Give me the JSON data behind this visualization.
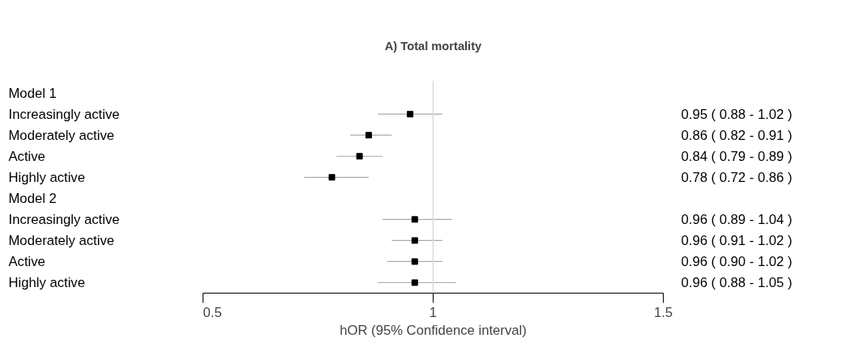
{
  "chart_data": {
    "type": "scatter",
    "orientation": "horizontal",
    "title": "A) Total mortality",
    "xlabel": "hOR (95% Confidence interval)",
    "categories": [
      "Model 1",
      "Increasingly active",
      "Moderately active",
      "Active",
      "Highly active",
      "Model 2",
      "Increasingly active",
      "Moderately active",
      "Active",
      "Highly active"
    ],
    "values": [
      null,
      0.95,
      0.86,
      0.84,
      0.78,
      null,
      0.96,
      0.96,
      0.96,
      0.96
    ],
    "errors": [
      null,
      [
        0.88,
        1.02
      ],
      [
        0.82,
        0.91
      ],
      [
        0.79,
        0.89
      ],
      [
        0.72,
        0.86
      ],
      null,
      [
        0.89,
        1.04
      ],
      [
        0.91,
        1.02
      ],
      [
        0.9,
        1.02
      ],
      [
        0.88,
        1.05
      ]
    ],
    "value_labels": [
      null,
      "0.95 ( 0.88 - 1.02 )",
      "0.86 ( 0.82 - 0.91 )",
      "0.84 ( 0.79 - 0.89 )",
      "0.78 ( 0.72 - 0.86 )",
      null,
      "0.96 ( 0.89 - 1.04 )",
      "0.96 ( 0.91 - 1.02 )",
      "0.96 ( 0.90 - 1.02 )",
      "0.96 ( 0.88 - 1.05 )"
    ],
    "color": "#000000",
    "marker": "square",
    "xlim": [
      0.5,
      1.5
    ],
    "xticks": [
      0.5,
      1,
      1.5
    ],
    "ref_lines": [
      {
        "axis": "x",
        "value": 1,
        "color": "#d9d9d9"
      }
    ]
  }
}
